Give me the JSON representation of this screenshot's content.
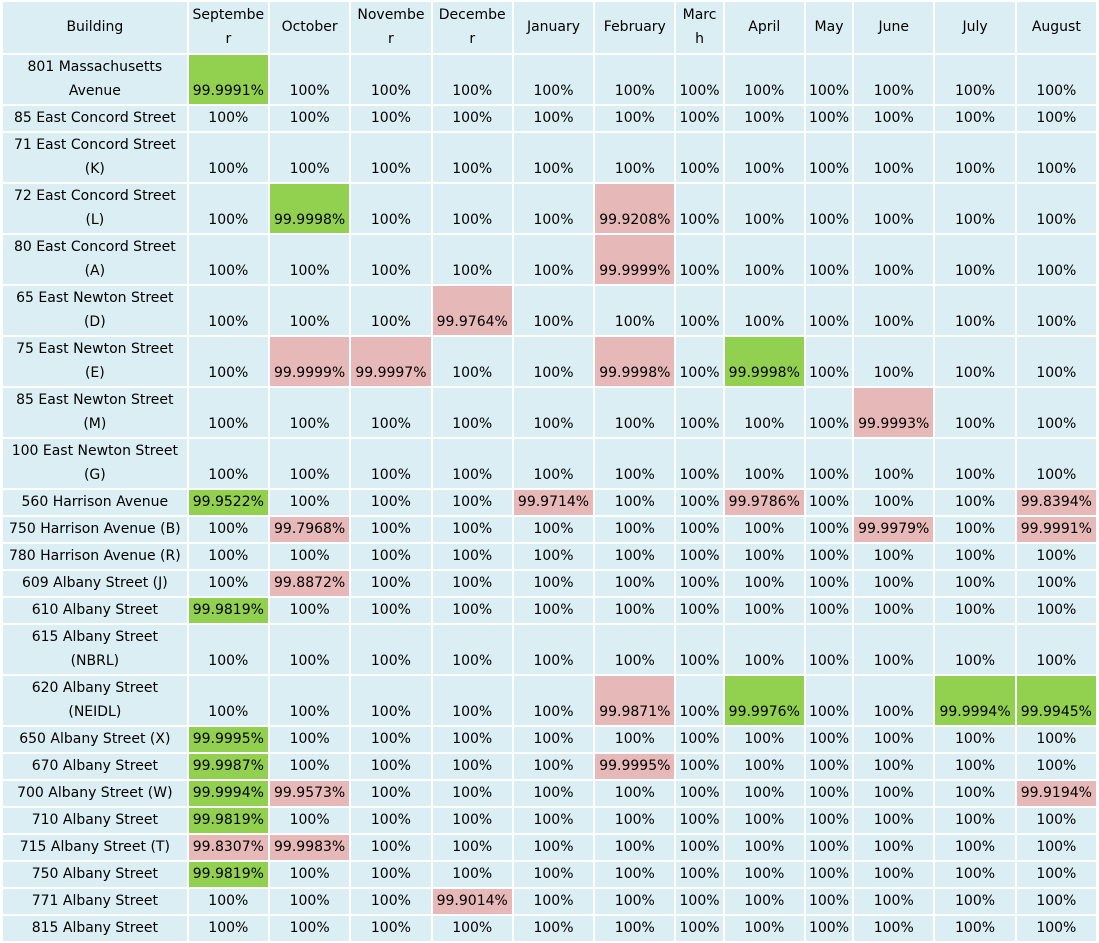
{
  "colors": {
    "cell": "#daeef3",
    "above_target": "#92d050",
    "below_target": "#e6b8b7",
    "border": "#ffffff"
  },
  "headers": [
    "Building",
    "Septembe\nr",
    "October",
    "Novembe\nr",
    "Decembe\nr",
    "January",
    "February",
    "Marc\nh",
    "April",
    "May",
    "June",
    "July",
    "August"
  ],
  "header_labels": [
    "Building",
    "September",
    "October",
    "November",
    "December",
    "January",
    "February",
    "March",
    "April",
    "May",
    "June",
    "July",
    "August"
  ],
  "rows": [
    {
      "building": "801 Massachusetts Avenue",
      "tall": true,
      "cells": [
        [
          "99.9991%",
          "g"
        ],
        [
          "100%",
          ""
        ],
        [
          "100%",
          ""
        ],
        [
          "100%",
          ""
        ],
        [
          "100%",
          ""
        ],
        [
          "100%",
          ""
        ],
        [
          "100%",
          ""
        ],
        [
          "100%",
          ""
        ],
        [
          "100%",
          ""
        ],
        [
          "100%",
          ""
        ],
        [
          "100%",
          ""
        ],
        [
          "100%",
          ""
        ]
      ]
    },
    {
      "building": "85 East Concord Street",
      "tall": false,
      "cells": [
        [
          "100%",
          ""
        ],
        [
          "100%",
          ""
        ],
        [
          "100%",
          ""
        ],
        [
          "100%",
          ""
        ],
        [
          "100%",
          ""
        ],
        [
          "100%",
          ""
        ],
        [
          "100%",
          ""
        ],
        [
          "100%",
          ""
        ],
        [
          "100%",
          ""
        ],
        [
          "100%",
          ""
        ],
        [
          "100%",
          ""
        ],
        [
          "100%",
          ""
        ]
      ]
    },
    {
      "building": "71 East Concord Street (K)",
      "tall": true,
      "cells": [
        [
          "100%",
          ""
        ],
        [
          "100%",
          ""
        ],
        [
          "100%",
          ""
        ],
        [
          "100%",
          ""
        ],
        [
          "100%",
          ""
        ],
        [
          "100%",
          ""
        ],
        [
          "100%",
          ""
        ],
        [
          "100%",
          ""
        ],
        [
          "100%",
          ""
        ],
        [
          "100%",
          ""
        ],
        [
          "100%",
          ""
        ],
        [
          "100%",
          ""
        ]
      ]
    },
    {
      "building": "72 East Concord Street (L)",
      "tall": true,
      "cells": [
        [
          "100%",
          ""
        ],
        [
          "99.9998%",
          "g"
        ],
        [
          "100%",
          ""
        ],
        [
          "100%",
          ""
        ],
        [
          "100%",
          ""
        ],
        [
          "99.9208%",
          "p"
        ],
        [
          "100%",
          ""
        ],
        [
          "100%",
          ""
        ],
        [
          "100%",
          ""
        ],
        [
          "100%",
          ""
        ],
        [
          "100%",
          ""
        ],
        [
          "100%",
          ""
        ]
      ]
    },
    {
      "building": "80 East Concord Street (A)",
      "tall": true,
      "cells": [
        [
          "100%",
          ""
        ],
        [
          "100%",
          ""
        ],
        [
          "100%",
          ""
        ],
        [
          "100%",
          ""
        ],
        [
          "100%",
          ""
        ],
        [
          "99.9999%",
          "p"
        ],
        [
          "100%",
          ""
        ],
        [
          "100%",
          ""
        ],
        [
          "100%",
          ""
        ],
        [
          "100%",
          ""
        ],
        [
          "100%",
          ""
        ],
        [
          "100%",
          ""
        ]
      ]
    },
    {
      "building": "65 East Newton Street (D)",
      "tall": true,
      "cells": [
        [
          "100%",
          ""
        ],
        [
          "100%",
          ""
        ],
        [
          "100%",
          ""
        ],
        [
          "99.9764%",
          "p"
        ],
        [
          "100%",
          ""
        ],
        [
          "100%",
          ""
        ],
        [
          "100%",
          ""
        ],
        [
          "100%",
          ""
        ],
        [
          "100%",
          ""
        ],
        [
          "100%",
          ""
        ],
        [
          "100%",
          ""
        ],
        [
          "100%",
          ""
        ]
      ]
    },
    {
      "building": "75 East Newton Street (E)",
      "tall": true,
      "cells": [
        [
          "100%",
          ""
        ],
        [
          "99.9999%",
          "p"
        ],
        [
          "99.9997%",
          "p"
        ],
        [
          "100%",
          ""
        ],
        [
          "100%",
          ""
        ],
        [
          "99.9998%",
          "p"
        ],
        [
          "100%",
          ""
        ],
        [
          "99.9998%",
          "g"
        ],
        [
          "100%",
          ""
        ],
        [
          "100%",
          ""
        ],
        [
          "100%",
          ""
        ],
        [
          "100%",
          ""
        ]
      ]
    },
    {
      "building": "85 East Newton Street (M)",
      "tall": true,
      "cells": [
        [
          "100%",
          ""
        ],
        [
          "100%",
          ""
        ],
        [
          "100%",
          ""
        ],
        [
          "100%",
          ""
        ],
        [
          "100%",
          ""
        ],
        [
          "100%",
          ""
        ],
        [
          "100%",
          ""
        ],
        [
          "100%",
          ""
        ],
        [
          "100%",
          ""
        ],
        [
          "99.9993%",
          "p"
        ],
        [
          "100%",
          ""
        ],
        [
          "100%",
          ""
        ]
      ]
    },
    {
      "building": "100 East Newton Street (G)",
      "tall": true,
      "cells": [
        [
          "100%",
          ""
        ],
        [
          "100%",
          ""
        ],
        [
          "100%",
          ""
        ],
        [
          "100%",
          ""
        ],
        [
          "100%",
          ""
        ],
        [
          "100%",
          ""
        ],
        [
          "100%",
          ""
        ],
        [
          "100%",
          ""
        ],
        [
          "100%",
          ""
        ],
        [
          "100%",
          ""
        ],
        [
          "100%",
          ""
        ],
        [
          "100%",
          ""
        ]
      ]
    },
    {
      "building": "560 Harrison Avenue",
      "tall": false,
      "cells": [
        [
          "99.9522%",
          "g"
        ],
        [
          "100%",
          ""
        ],
        [
          "100%",
          ""
        ],
        [
          "100%",
          ""
        ],
        [
          "99.9714%",
          "p"
        ],
        [
          "100%",
          ""
        ],
        [
          "100%",
          ""
        ],
        [
          "99.9786%",
          "p"
        ],
        [
          "100%",
          ""
        ],
        [
          "100%",
          ""
        ],
        [
          "100%",
          ""
        ],
        [
          "99.8394%",
          "p"
        ]
      ]
    },
    {
      "building": "750 Harrison Avenue (B)",
      "tall": false,
      "cells": [
        [
          "100%",
          ""
        ],
        [
          "99.7968%",
          "p"
        ],
        [
          "100%",
          ""
        ],
        [
          "100%",
          ""
        ],
        [
          "100%",
          ""
        ],
        [
          "100%",
          ""
        ],
        [
          "100%",
          ""
        ],
        [
          "100%",
          ""
        ],
        [
          "100%",
          ""
        ],
        [
          "99.9979%",
          "p"
        ],
        [
          "100%",
          ""
        ],
        [
          "99.9991%",
          "p"
        ]
      ]
    },
    {
      "building": "780 Harrison Avenue (R)",
      "tall": false,
      "cells": [
        [
          "100%",
          ""
        ],
        [
          "100%",
          ""
        ],
        [
          "100%",
          ""
        ],
        [
          "100%",
          ""
        ],
        [
          "100%",
          ""
        ],
        [
          "100%",
          ""
        ],
        [
          "100%",
          ""
        ],
        [
          "100%",
          ""
        ],
        [
          "100%",
          ""
        ],
        [
          "100%",
          ""
        ],
        [
          "100%",
          ""
        ],
        [
          "100%",
          ""
        ]
      ]
    },
    {
      "building": "609 Albany Street (J)",
      "tall": false,
      "cells": [
        [
          "100%",
          ""
        ],
        [
          "99.8872%",
          "p"
        ],
        [
          "100%",
          ""
        ],
        [
          "100%",
          ""
        ],
        [
          "100%",
          ""
        ],
        [
          "100%",
          ""
        ],
        [
          "100%",
          ""
        ],
        [
          "100%",
          ""
        ],
        [
          "100%",
          ""
        ],
        [
          "100%",
          ""
        ],
        [
          "100%",
          ""
        ],
        [
          "100%",
          ""
        ]
      ]
    },
    {
      "building": "610 Albany Street",
      "tall": false,
      "cells": [
        [
          "99.9819%",
          "g"
        ],
        [
          "100%",
          ""
        ],
        [
          "100%",
          ""
        ],
        [
          "100%",
          ""
        ],
        [
          "100%",
          ""
        ],
        [
          "100%",
          ""
        ],
        [
          "100%",
          ""
        ],
        [
          "100%",
          ""
        ],
        [
          "100%",
          ""
        ],
        [
          "100%",
          ""
        ],
        [
          "100%",
          ""
        ],
        [
          "100%",
          ""
        ]
      ]
    },
    {
      "building": "615 Albany Street (NBRL)",
      "tall": true,
      "cells": [
        [
          "100%",
          ""
        ],
        [
          "100%",
          ""
        ],
        [
          "100%",
          ""
        ],
        [
          "100%",
          ""
        ],
        [
          "100%",
          ""
        ],
        [
          "100%",
          ""
        ],
        [
          "100%",
          ""
        ],
        [
          "100%",
          ""
        ],
        [
          "100%",
          ""
        ],
        [
          "100%",
          ""
        ],
        [
          "100%",
          ""
        ],
        [
          "100%",
          ""
        ]
      ]
    },
    {
      "building": "620 Albany Street (NEIDL)",
      "tall": true,
      "cells": [
        [
          "100%",
          ""
        ],
        [
          "100%",
          ""
        ],
        [
          "100%",
          ""
        ],
        [
          "100%",
          ""
        ],
        [
          "100%",
          ""
        ],
        [
          "99.9871%",
          "p"
        ],
        [
          "100%",
          ""
        ],
        [
          "99.9976%",
          "g"
        ],
        [
          "100%",
          ""
        ],
        [
          "100%",
          ""
        ],
        [
          "99.9994%",
          "g"
        ],
        [
          "99.9945%",
          "g"
        ]
      ]
    },
    {
      "building": "650 Albany Street (X)",
      "tall": false,
      "cells": [
        [
          "99.9995%",
          "g"
        ],
        [
          "100%",
          ""
        ],
        [
          "100%",
          ""
        ],
        [
          "100%",
          ""
        ],
        [
          "100%",
          ""
        ],
        [
          "100%",
          ""
        ],
        [
          "100%",
          ""
        ],
        [
          "100%",
          ""
        ],
        [
          "100%",
          ""
        ],
        [
          "100%",
          ""
        ],
        [
          "100%",
          ""
        ],
        [
          "100%",
          ""
        ]
      ]
    },
    {
      "building": "670 Albany Street",
      "tall": false,
      "cells": [
        [
          "99.9987%",
          "g"
        ],
        [
          "100%",
          ""
        ],
        [
          "100%",
          ""
        ],
        [
          "100%",
          ""
        ],
        [
          "100%",
          ""
        ],
        [
          "99.9995%",
          "p"
        ],
        [
          "100%",
          ""
        ],
        [
          "100%",
          ""
        ],
        [
          "100%",
          ""
        ],
        [
          "100%",
          ""
        ],
        [
          "100%",
          ""
        ],
        [
          "100%",
          ""
        ]
      ]
    },
    {
      "building": "700 Albany Street (W)",
      "tall": false,
      "cells": [
        [
          "99.9994%",
          "g"
        ],
        [
          "99.9573%",
          "p"
        ],
        [
          "100%",
          ""
        ],
        [
          "100%",
          ""
        ],
        [
          "100%",
          ""
        ],
        [
          "100%",
          ""
        ],
        [
          "100%",
          ""
        ],
        [
          "100%",
          ""
        ],
        [
          "100%",
          ""
        ],
        [
          "100%",
          ""
        ],
        [
          "100%",
          ""
        ],
        [
          "99.9194%",
          "p"
        ]
      ]
    },
    {
      "building": "710 Albany Street",
      "tall": false,
      "cells": [
        [
          "99.9819%",
          "g"
        ],
        [
          "100%",
          ""
        ],
        [
          "100%",
          ""
        ],
        [
          "100%",
          ""
        ],
        [
          "100%",
          ""
        ],
        [
          "100%",
          ""
        ],
        [
          "100%",
          ""
        ],
        [
          "100%",
          ""
        ],
        [
          "100%",
          ""
        ],
        [
          "100%",
          ""
        ],
        [
          "100%",
          ""
        ],
        [
          "100%",
          ""
        ]
      ]
    },
    {
      "building": "715 Albany Street (T)",
      "tall": false,
      "cells": [
        [
          "99.8307%",
          "p"
        ],
        [
          "99.9983%",
          "p"
        ],
        [
          "100%",
          ""
        ],
        [
          "100%",
          ""
        ],
        [
          "100%",
          ""
        ],
        [
          "100%",
          ""
        ],
        [
          "100%",
          ""
        ],
        [
          "100%",
          ""
        ],
        [
          "100%",
          ""
        ],
        [
          "100%",
          ""
        ],
        [
          "100%",
          ""
        ],
        [
          "100%",
          ""
        ]
      ]
    },
    {
      "building": "750 Albany Street",
      "tall": false,
      "cells": [
        [
          "99.9819%",
          "g"
        ],
        [
          "100%",
          ""
        ],
        [
          "100%",
          ""
        ],
        [
          "100%",
          ""
        ],
        [
          "100%",
          ""
        ],
        [
          "100%",
          ""
        ],
        [
          "100%",
          ""
        ],
        [
          "100%",
          ""
        ],
        [
          "100%",
          ""
        ],
        [
          "100%",
          ""
        ],
        [
          "100%",
          ""
        ],
        [
          "100%",
          ""
        ]
      ]
    },
    {
      "building": "771 Albany Street",
      "tall": false,
      "cells": [
        [
          "100%",
          ""
        ],
        [
          "100%",
          ""
        ],
        [
          "100%",
          ""
        ],
        [
          "99.9014%",
          "p"
        ],
        [
          "100%",
          ""
        ],
        [
          "100%",
          ""
        ],
        [
          "100%",
          ""
        ],
        [
          "100%",
          ""
        ],
        [
          "100%",
          ""
        ],
        [
          "100%",
          ""
        ],
        [
          "100%",
          ""
        ],
        [
          "100%",
          ""
        ]
      ]
    },
    {
      "building": "815 Albany Street",
      "tall": false,
      "cells": [
        [
          "100%",
          ""
        ],
        [
          "100%",
          ""
        ],
        [
          "100%",
          ""
        ],
        [
          "100%",
          ""
        ],
        [
          "100%",
          ""
        ],
        [
          "100%",
          ""
        ],
        [
          "100%",
          ""
        ],
        [
          "100%",
          ""
        ],
        [
          "100%",
          ""
        ],
        [
          "100%",
          ""
        ],
        [
          "100%",
          ""
        ],
        [
          "100%",
          ""
        ]
      ]
    }
  ]
}
